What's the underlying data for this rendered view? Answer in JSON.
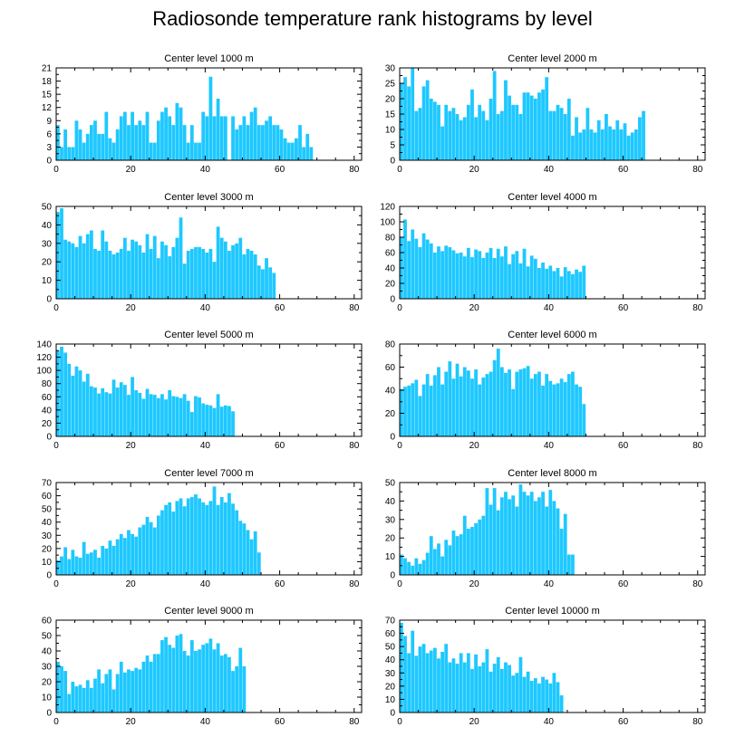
{
  "title": "Radiosonde temperature rank histograms by level",
  "colors": {
    "bar": "#1ec8ff",
    "axis": "#000000",
    "background": "#ffffff"
  },
  "chart_data": [
    {
      "type": "bar",
      "title": "Center level 1000 m",
      "xlim": [
        0,
        82
      ],
      "ylim": [
        0,
        21
      ],
      "xticks": [
        0,
        20,
        40,
        60,
        80
      ],
      "yticks": [
        0,
        3,
        6,
        9,
        12,
        15,
        18,
        21
      ],
      "values": [
        8,
        3,
        7,
        3,
        3,
        9,
        7,
        4,
        6,
        8,
        9,
        6,
        6,
        11,
        5,
        4,
        7,
        10,
        11,
        8,
        11,
        8,
        9,
        8,
        11,
        4,
        4,
        9,
        11,
        12,
        10,
        8,
        13,
        12,
        8,
        4,
        8,
        4,
        4,
        11,
        10,
        19,
        10,
        14,
        10,
        10,
        0,
        10,
        7,
        8,
        10,
        8,
        11,
        12,
        8,
        8,
        9,
        10,
        8,
        8,
        7,
        5,
        4,
        4,
        5,
        8,
        3,
        6,
        3
      ],
      "x": [
        1,
        2,
        3,
        4,
        5,
        6,
        7,
        8,
        9,
        10,
        11,
        12,
        13,
        14,
        15,
        16,
        17,
        18,
        19,
        20,
        21,
        22,
        23,
        24,
        25,
        26,
        27,
        28,
        29,
        30,
        31,
        32,
        33,
        34,
        35,
        36,
        37,
        38,
        39,
        40,
        41,
        42,
        43,
        44,
        45,
        46,
        47,
        48,
        49,
        50,
        51,
        52,
        53,
        54,
        55,
        56,
        57,
        58,
        59,
        60,
        61,
        62,
        63,
        64,
        65,
        66,
        67,
        68,
        69
      ]
    },
    {
      "type": "bar",
      "title": "Center level 2000 m",
      "xlim": [
        0,
        82
      ],
      "ylim": [
        0,
        30
      ],
      "xticks": [
        0,
        20,
        40,
        60,
        80
      ],
      "yticks": [
        0,
        5,
        10,
        15,
        20,
        25,
        30
      ],
      "values": [
        25,
        27,
        24,
        30,
        16,
        17,
        24,
        26,
        20,
        19,
        18,
        11,
        18,
        16,
        17,
        15,
        13,
        14,
        18,
        23,
        14,
        18,
        16,
        13,
        20,
        29,
        15,
        16,
        26,
        21,
        18,
        18,
        15,
        22,
        22,
        21,
        20,
        22,
        23,
        27,
        16,
        16,
        18,
        17,
        15,
        20,
        8,
        14,
        9,
        10,
        17,
        10,
        9,
        13,
        10,
        15,
        11,
        10,
        13,
        10,
        12,
        8,
        9,
        10,
        14,
        16
      ],
      "x": [
        1,
        2,
        3,
        4,
        5,
        6,
        7,
        8,
        9,
        10,
        11,
        12,
        13,
        14,
        15,
        16,
        17,
        18,
        19,
        20,
        21,
        22,
        23,
        24,
        25,
        26,
        27,
        28,
        29,
        30,
        31,
        32,
        33,
        34,
        35,
        36,
        37,
        38,
        39,
        40,
        41,
        42,
        43,
        44,
        45,
        46,
        47,
        48,
        49,
        50,
        51,
        52,
        53,
        54,
        55,
        56,
        57,
        58,
        59,
        60,
        61,
        62,
        63,
        64,
        65,
        66
      ]
    },
    {
      "type": "bar",
      "title": "Center level 3000 m",
      "xlim": [
        0,
        82
      ],
      "ylim": [
        0,
        50
      ],
      "xticks": [
        0,
        20,
        40,
        60,
        80
      ],
      "yticks": [
        0,
        10,
        20,
        30,
        40,
        50
      ],
      "values": [
        47,
        49,
        32,
        31,
        30,
        28,
        34,
        30,
        35,
        37,
        27,
        26,
        37,
        31,
        26,
        24,
        25,
        27,
        33,
        26,
        32,
        31,
        29,
        25,
        35,
        27,
        34,
        22,
        31,
        29,
        23,
        28,
        33,
        44,
        19,
        26,
        27,
        28,
        28,
        27,
        25,
        27,
        20,
        39,
        33,
        31,
        26,
        29,
        30,
        33,
        24,
        27,
        26,
        24,
        18,
        16,
        22,
        17,
        14
      ],
      "x": [
        1,
        2,
        3,
        4,
        5,
        6,
        7,
        8,
        9,
        10,
        11,
        12,
        13,
        14,
        15,
        16,
        17,
        18,
        19,
        20,
        21,
        22,
        23,
        24,
        25,
        26,
        27,
        28,
        29,
        30,
        31,
        32,
        33,
        34,
        35,
        36,
        37,
        38,
        39,
        40,
        41,
        42,
        43,
        44,
        45,
        46,
        47,
        48,
        49,
        50,
        51,
        52,
        53,
        54,
        55,
        56,
        57,
        58,
        59
      ]
    },
    {
      "type": "bar",
      "title": "Center level 4000 m",
      "xlim": [
        0,
        82
      ],
      "ylim": [
        0,
        120
      ],
      "xticks": [
        0,
        20,
        40,
        60,
        80
      ],
      "yticks": [
        0,
        20,
        40,
        60,
        80,
        100,
        120
      ],
      "values": [
        80,
        103,
        75,
        90,
        78,
        67,
        85,
        77,
        72,
        60,
        68,
        62,
        69,
        67,
        63,
        59,
        60,
        55,
        66,
        54,
        64,
        62,
        53,
        60,
        66,
        53,
        65,
        55,
        68,
        45,
        58,
        62,
        46,
        65,
        42,
        56,
        52,
        40,
        47,
        39,
        43,
        36,
        40,
        29,
        41,
        36,
        32,
        38,
        35,
        43
      ],
      "x": [
        1,
        2,
        3,
        4,
        5,
        6,
        7,
        8,
        9,
        10,
        11,
        12,
        13,
        14,
        15,
        16,
        17,
        18,
        19,
        20,
        21,
        22,
        23,
        24,
        25,
        26,
        27,
        28,
        29,
        30,
        31,
        32,
        33,
        34,
        35,
        36,
        37,
        38,
        39,
        40,
        41,
        42,
        43,
        44,
        45,
        46,
        47,
        48,
        49,
        50
      ]
    },
    {
      "type": "bar",
      "title": "Center level 5000 m",
      "xlim": [
        0,
        82
      ],
      "ylim": [
        0,
        140
      ],
      "xticks": [
        0,
        20,
        40,
        60,
        80
      ],
      "yticks": [
        0,
        20,
        40,
        60,
        80,
        100,
        120,
        140
      ],
      "values": [
        130,
        136,
        127,
        110,
        92,
        106,
        100,
        83,
        95,
        76,
        74,
        65,
        73,
        67,
        65,
        86,
        74,
        82,
        78,
        63,
        90,
        70,
        66,
        57,
        72,
        64,
        63,
        58,
        64,
        56,
        70,
        61,
        60,
        58,
        64,
        54,
        37,
        61,
        59,
        50,
        48,
        47,
        43,
        64,
        45,
        47,
        46,
        38
      ],
      "x": [
        1,
        2,
        3,
        4,
        5,
        6,
        7,
        8,
        9,
        10,
        11,
        12,
        13,
        14,
        15,
        16,
        17,
        18,
        19,
        20,
        21,
        22,
        23,
        24,
        25,
        26,
        27,
        28,
        29,
        30,
        31,
        32,
        33,
        34,
        35,
        36,
        37,
        38,
        39,
        40,
        41,
        42,
        43,
        44,
        45,
        46,
        47,
        48
      ]
    },
    {
      "type": "bar",
      "title": "Center level 6000 m",
      "xlim": [
        0,
        82
      ],
      "ylim": [
        0,
        80
      ],
      "xticks": [
        0,
        20,
        40,
        60,
        80
      ],
      "yticks": [
        0,
        20,
        40,
        60,
        80
      ],
      "values": [
        41,
        43,
        44,
        46,
        49,
        35,
        45,
        54,
        44,
        53,
        60,
        45,
        56,
        65,
        50,
        63,
        52,
        60,
        57,
        50,
        58,
        45,
        51,
        54,
        56,
        66,
        76,
        60,
        55,
        58,
        41,
        56,
        58,
        59,
        61,
        50,
        54,
        56,
        44,
        54,
        48,
        45,
        46,
        50,
        47,
        54,
        56,
        45,
        43,
        28
      ],
      "x": [
        1,
        2,
        3,
        4,
        5,
        6,
        7,
        8,
        9,
        10,
        11,
        12,
        13,
        14,
        15,
        16,
        17,
        18,
        19,
        20,
        21,
        22,
        23,
        24,
        25,
        26,
        27,
        28,
        29,
        30,
        31,
        32,
        33,
        34,
        35,
        36,
        37,
        38,
        39,
        40,
        41,
        42,
        43,
        44,
        45,
        46,
        47,
        48,
        49,
        50
      ]
    },
    {
      "type": "bar",
      "title": "Center level 7000 m",
      "xlim": [
        0,
        82
      ],
      "ylim": [
        0,
        70
      ],
      "xticks": [
        0,
        20,
        40,
        60,
        80
      ],
      "yticks": [
        0,
        10,
        20,
        30,
        40,
        50,
        60,
        70
      ],
      "values": [
        11,
        14,
        21,
        12,
        19,
        14,
        13,
        25,
        16,
        17,
        19,
        13,
        22,
        20,
        26,
        22,
        27,
        31,
        28,
        34,
        31,
        29,
        36,
        38,
        44,
        40,
        36,
        45,
        49,
        53,
        55,
        48,
        56,
        58,
        52,
        58,
        59,
        61,
        58,
        55,
        53,
        56,
        67,
        53,
        59,
        55,
        62,
        54,
        49,
        41,
        39,
        34,
        27,
        33,
        17
      ],
      "x": [
        1,
        2,
        3,
        4,
        5,
        6,
        7,
        8,
        9,
        10,
        11,
        12,
        13,
        14,
        15,
        16,
        17,
        18,
        19,
        20,
        21,
        22,
        23,
        24,
        25,
        26,
        27,
        28,
        29,
        30,
        31,
        32,
        33,
        34,
        35,
        36,
        37,
        38,
        39,
        40,
        41,
        42,
        43,
        44,
        45,
        46,
        47,
        48,
        49,
        50,
        51,
        52,
        53,
        54,
        55
      ]
    },
    {
      "type": "bar",
      "title": "Center level 8000 m",
      "xlim": [
        0,
        82
      ],
      "ylim": [
        0,
        50
      ],
      "xticks": [
        0,
        20,
        40,
        60,
        80
      ],
      "yticks": [
        0,
        10,
        20,
        30,
        40,
        50
      ],
      "values": [
        11,
        9,
        7,
        5,
        9,
        6,
        8,
        12,
        21,
        14,
        17,
        10,
        19,
        16,
        24,
        21,
        22,
        32,
        25,
        26,
        28,
        30,
        32,
        47,
        38,
        47,
        35,
        42,
        45,
        41,
        43,
        37,
        49,
        45,
        43,
        45,
        40,
        42,
        45,
        37,
        46,
        40,
        36,
        25,
        33,
        11,
        11
      ],
      "x": [
        1,
        2,
        3,
        4,
        5,
        6,
        7,
        8,
        9,
        10,
        11,
        12,
        13,
        14,
        15,
        16,
        17,
        18,
        19,
        20,
        21,
        22,
        23,
        24,
        25,
        26,
        27,
        28,
        29,
        30,
        31,
        32,
        33,
        34,
        35,
        36,
        37,
        38,
        39,
        40,
        41,
        42,
        43,
        44,
        45,
        46,
        47
      ]
    },
    {
      "type": "bar",
      "title": "Center level 9000 m",
      "xlim": [
        0,
        82
      ],
      "ylim": [
        0,
        60
      ],
      "xticks": [
        0,
        20,
        40,
        60,
        80
      ],
      "yticks": [
        0,
        10,
        20,
        30,
        40,
        50,
        60
      ],
      "values": [
        33,
        30,
        27,
        12,
        20,
        17,
        18,
        16,
        21,
        16,
        22,
        28,
        19,
        25,
        28,
        15,
        25,
        33,
        26,
        28,
        27,
        29,
        28,
        33,
        37,
        33,
        38,
        38,
        47,
        49,
        44,
        42,
        50,
        51,
        40,
        37,
        47,
        40,
        41,
        44,
        45,
        48,
        41,
        45,
        37,
        38,
        36,
        27,
        30,
        42,
        30
      ],
      "x": [
        1,
        2,
        3,
        4,
        5,
        6,
        7,
        8,
        9,
        10,
        11,
        12,
        13,
        14,
        15,
        16,
        17,
        18,
        19,
        20,
        21,
        22,
        23,
        24,
        25,
        26,
        27,
        28,
        29,
        30,
        31,
        32,
        33,
        34,
        35,
        36,
        37,
        38,
        39,
        40,
        41,
        42,
        43,
        44,
        45,
        46,
        47,
        48,
        49,
        50,
        51
      ]
    },
    {
      "type": "bar",
      "title": "Center level 10000 m",
      "xlim": [
        0,
        82
      ],
      "ylim": [
        0,
        70
      ],
      "xticks": [
        0,
        20,
        40,
        60,
        80
      ],
      "yticks": [
        0,
        10,
        20,
        30,
        40,
        50,
        60,
        70
      ],
      "values": [
        68,
        58,
        45,
        62,
        43,
        50,
        52,
        45,
        47,
        49,
        41,
        46,
        52,
        38,
        41,
        37,
        45,
        38,
        45,
        33,
        44,
        35,
        38,
        48,
        31,
        37,
        42,
        33,
        38,
        36,
        28,
        30,
        42,
        27,
        31,
        24,
        26,
        22,
        27,
        25,
        22,
        30,
        23,
        13
      ],
      "x": [
        1,
        2,
        3,
        4,
        5,
        6,
        7,
        8,
        9,
        10,
        11,
        12,
        13,
        14,
        15,
        16,
        17,
        18,
        19,
        20,
        21,
        22,
        23,
        24,
        25,
        26,
        27,
        28,
        29,
        30,
        31,
        32,
        33,
        34,
        35,
        36,
        37,
        38,
        39,
        40,
        41,
        42,
        43,
        44
      ]
    }
  ]
}
